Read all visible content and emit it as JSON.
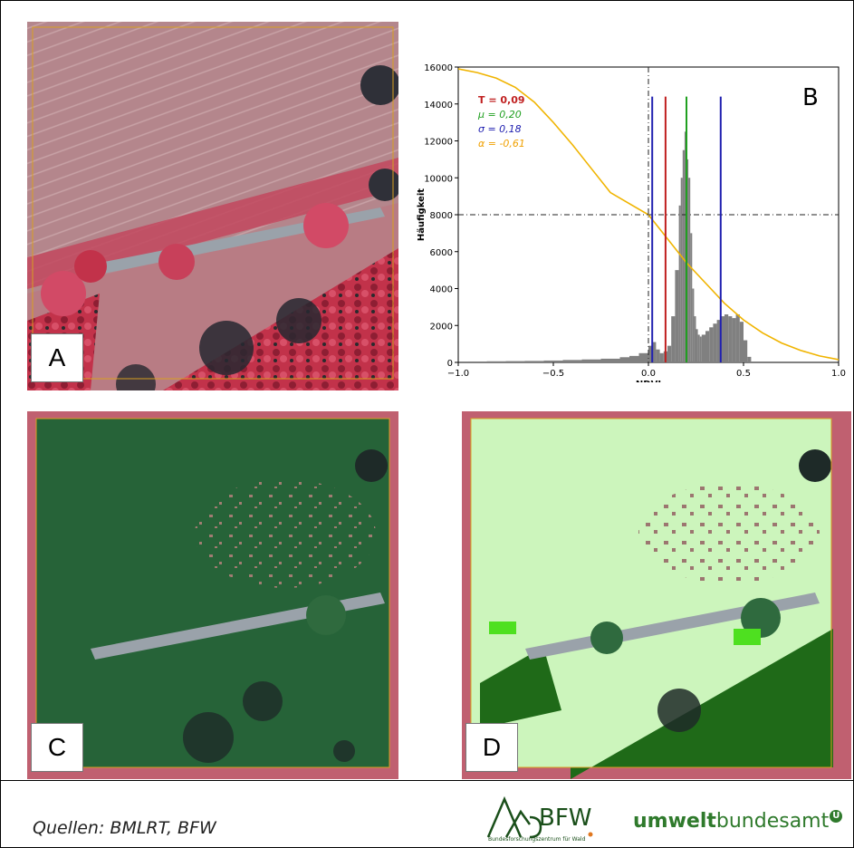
{
  "panels": {
    "a_label": "A",
    "b_label": "B",
    "c_label": "C",
    "d_label": "D"
  },
  "chart_data": {
    "type": "bar",
    "xlabel": "NDVI",
    "ylabel": "Häufigkeit",
    "xlim": [
      -1.0,
      1.0
    ],
    "ylim": [
      0,
      16000
    ],
    "x_ticks": [
      "−1.0",
      "−0.5",
      "0.0",
      "0.5",
      "1.0"
    ],
    "y_ticks": [
      "0",
      "2000",
      "4000",
      "6000",
      "8000",
      "10000",
      "12000",
      "14000",
      "16000"
    ],
    "histogram": {
      "x": [
        -0.95,
        -0.85,
        -0.75,
        -0.65,
        -0.55,
        -0.45,
        -0.35,
        -0.25,
        -0.15,
        -0.1,
        -0.05,
        0.0,
        0.02,
        0.04,
        0.06,
        0.08,
        0.1,
        0.12,
        0.14,
        0.16,
        0.17,
        0.18,
        0.19,
        0.2,
        0.21,
        0.22,
        0.23,
        0.24,
        0.25,
        0.26,
        0.27,
        0.28,
        0.3,
        0.32,
        0.34,
        0.36,
        0.38,
        0.4,
        0.42,
        0.44,
        0.46,
        0.48,
        0.5,
        0.52
      ],
      "values": [
        50,
        60,
        70,
        80,
        100,
        130,
        160,
        200,
        280,
        350,
        500,
        900,
        1100,
        700,
        500,
        600,
        900,
        2500,
        5000,
        8500,
        10000,
        11500,
        12500,
        11000,
        10000,
        7000,
        4000,
        2500,
        1800,
        1500,
        1400,
        1500,
        1700,
        1900,
        2100,
        2300,
        2500,
        2600,
        2500,
        2400,
        2600,
        2200,
        1200,
        300
      ],
      "color": "#808080"
    },
    "sigmoid": {
      "x": [
        -1.0,
        -0.9,
        -0.8,
        -0.7,
        -0.6,
        -0.5,
        -0.4,
        -0.3,
        -0.2,
        -0.1,
        0.0,
        0.1,
        0.2,
        0.3,
        0.4,
        0.5,
        0.6,
        0.7,
        0.8,
        0.9,
        1.0
      ],
      "values": [
        15900,
        15700,
        15400,
        14900,
        14100,
        13000,
        11800,
        10500,
        9200,
        8600,
        8000,
        6700,
        5400,
        4300,
        3200,
        2300,
        1600,
        1050,
        650,
        350,
        150
      ],
      "color": "#f0b400"
    },
    "vlines": [
      {
        "x": 0.02,
        "color": "#2020b0"
      },
      {
        "x": 0.09,
        "color": "#c02020"
      },
      {
        "x": 0.2,
        "color": "#20a020"
      },
      {
        "x": 0.38,
        "color": "#2020b0"
      }
    ],
    "vline_top": 14400,
    "dashed_vline_x": 0.0,
    "dashed_hline_y": 8000,
    "legend": [
      {
        "text": "T = 0,09",
        "color": "#c02020"
      },
      {
        "text": "μ = 0,20",
        "color": "#20a020"
      },
      {
        "text": "σ = 0,18",
        "color": "#2020b0"
      },
      {
        "text": "α = -0,61",
        "color": "#f0a000"
      }
    ]
  },
  "footer": {
    "source": "Quellen: BMLRT, BFW",
    "bfw_logo": "BFW",
    "bfw_subtitle": "Bundesforschungszentrum für Wald",
    "uba_bold": "umwelt",
    "uba_regular": "bundesamt",
    "uba_mark": "U"
  }
}
